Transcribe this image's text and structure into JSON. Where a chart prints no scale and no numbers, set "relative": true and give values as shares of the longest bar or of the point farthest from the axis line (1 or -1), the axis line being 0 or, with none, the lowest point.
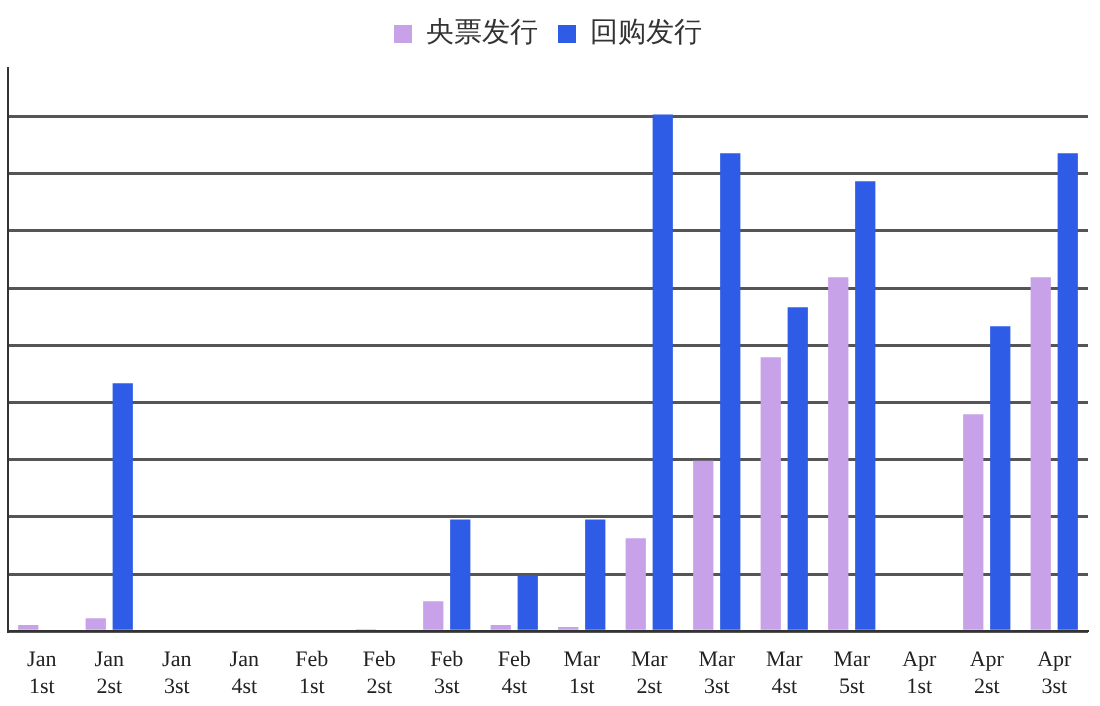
{
  "chart_data": {
    "type": "bar",
    "relative": true,
    "grid": "y",
    "legend": "top",
    "categories": [
      "Jan 1st",
      "Jan 2st",
      "Jan 3st",
      "Jan 4st",
      "Feb 1st",
      "Feb 2st",
      "Feb 3st",
      "Feb 4st",
      "Mar 1st",
      "Mar 2st",
      "Mar 3st",
      "Mar 4st",
      "Mar 5st",
      "Apr 1st",
      "Apr 2st",
      "Apr 3st"
    ],
    "series": [
      {
        "name": "央票发行",
        "color": "#c8a2e8",
        "values": [
          0.012,
          0.025,
          0,
          0,
          0,
          0.004,
          0.058,
          0.012,
          0.008,
          0.18,
          0.33,
          0.53,
          0.685,
          0,
          0.42,
          0.685
        ]
      },
      {
        "name": "回购发行",
        "color": "#2f5ce6",
        "values": [
          0,
          0.48,
          0,
          0,
          0,
          0,
          0.216,
          0.108,
          0.216,
          1,
          0.925,
          0.627,
          0.871,
          0,
          0.59,
          0.925
        ]
      }
    ]
  }
}
